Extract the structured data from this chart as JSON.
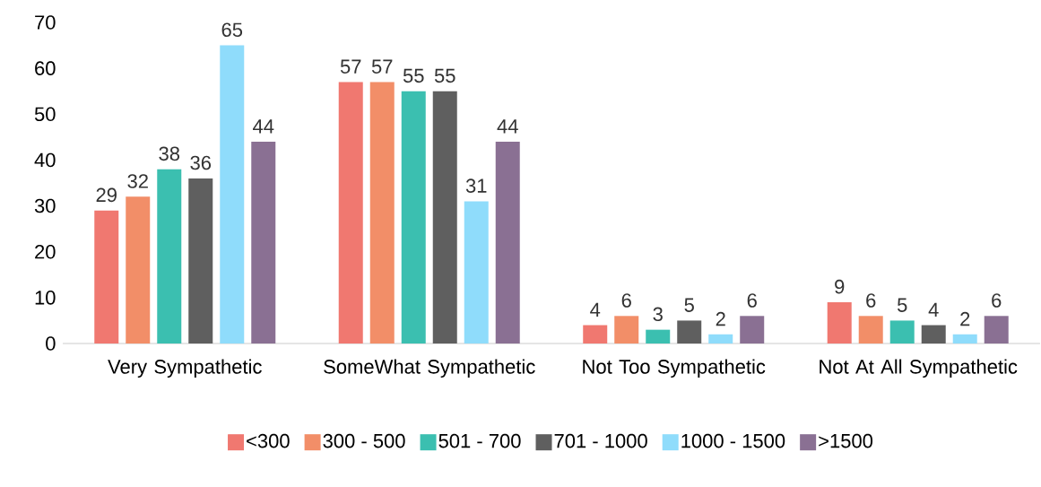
{
  "chart_data": {
    "type": "bar",
    "categories": [
      "Very Sympathetic",
      "SomeWhat Sympathetic",
      "Not Too Sympathetic",
      "Not At All Sympathetic"
    ],
    "series": [
      {
        "name": "<300",
        "color": "#f07870",
        "values": [
          29,
          57,
          4,
          9
        ]
      },
      {
        "name": "300 - 500",
        "color": "#f28e68",
        "values": [
          32,
          57,
          6,
          6
        ]
      },
      {
        "name": "501 - 700",
        "color": "#3bbfb0",
        "values": [
          38,
          55,
          3,
          5
        ]
      },
      {
        "name": "701 - 1000",
        "color": "#5f5f5f",
        "values": [
          36,
          55,
          5,
          4
        ]
      },
      {
        "name": "1000 - 1500",
        "color": "#8fdcfb",
        "values": [
          65,
          31,
          2,
          2
        ]
      },
      {
        "name": ">1500",
        "color": "#8a7093",
        "values": [
          44,
          44,
          6,
          6
        ]
      }
    ],
    "ylim": [
      0,
      70
    ],
    "yticks": [
      0,
      10,
      20,
      30,
      40,
      50,
      60,
      70
    ],
    "grid": false,
    "legend": "bottom",
    "data_labels": true
  }
}
